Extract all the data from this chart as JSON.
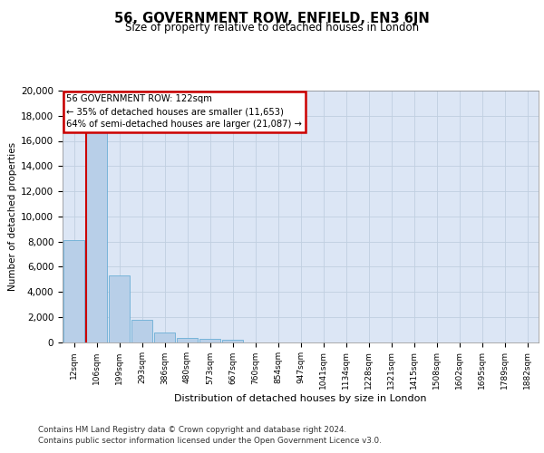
{
  "title": "56, GOVERNMENT ROW, ENFIELD, EN3 6JN",
  "subtitle": "Size of property relative to detached houses in London",
  "xlabel": "Distribution of detached houses by size in London",
  "ylabel": "Number of detached properties",
  "categories": [
    "12sqm",
    "106sqm",
    "199sqm",
    "293sqm",
    "386sqm",
    "480sqm",
    "573sqm",
    "667sqm",
    "760sqm",
    "854sqm",
    "947sqm",
    "1041sqm",
    "1134sqm",
    "1228sqm",
    "1321sqm",
    "1415sqm",
    "1508sqm",
    "1602sqm",
    "1695sqm",
    "1789sqm",
    "1882sqm"
  ],
  "values": [
    8100,
    16700,
    5300,
    1750,
    750,
    330,
    260,
    200,
    0,
    0,
    0,
    0,
    0,
    0,
    0,
    0,
    0,
    0,
    0,
    0,
    0
  ],
  "bar_color": "#b8cfe8",
  "bar_edge_color": "#6baed6",
  "vline_color": "#cc0000",
  "annotation_title": "56 GOVERNMENT ROW: 122sqm",
  "annotation_line1": "← 35% of detached houses are smaller (11,653)",
  "annotation_line2": "64% of semi-detached houses are larger (21,087) →",
  "annotation_box_edge": "#cc0000",
  "annotation_bg": "#ffffff",
  "ylim": [
    0,
    20000
  ],
  "yticks": [
    0,
    2000,
    4000,
    6000,
    8000,
    10000,
    12000,
    14000,
    16000,
    18000,
    20000
  ],
  "grid_color": "#c0cfe0",
  "bg_color": "#dce6f5",
  "footer1": "Contains HM Land Registry data © Crown copyright and database right 2024.",
  "footer2": "Contains public sector information licensed under the Open Government Licence v3.0."
}
